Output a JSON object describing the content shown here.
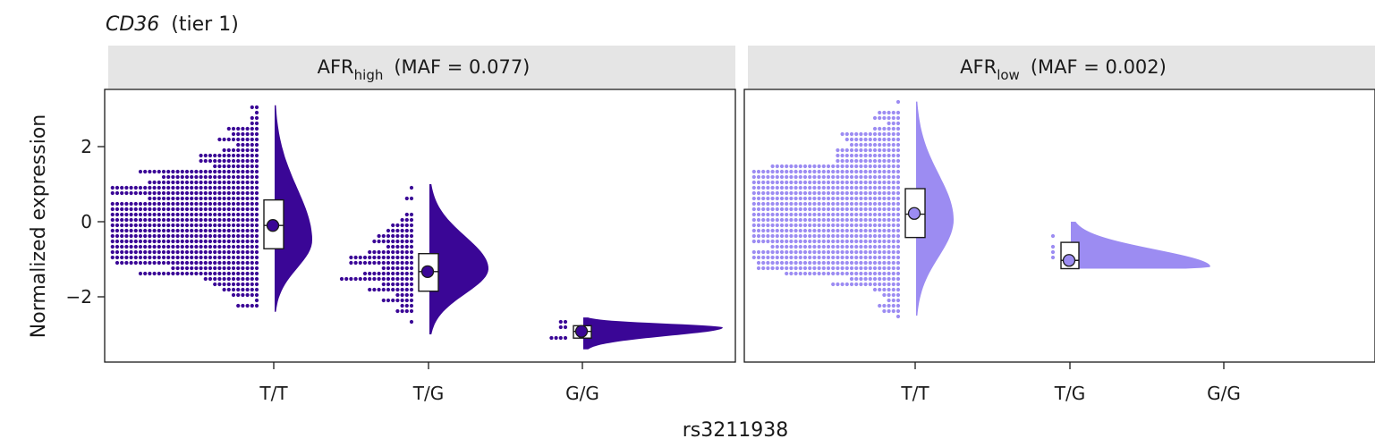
{
  "chart_data": {
    "type": "raincloud",
    "title": {
      "gene": "CD36",
      "suffix": "(tier 1)"
    },
    "xlabel": "rs3211938",
    "ylabel": "Normalized expression",
    "categories": [
      "T/T",
      "T/G",
      "G/G"
    ],
    "yticks": [
      "2",
      "0",
      "−2"
    ],
    "ytick_values": [
      2,
      0,
      -2
    ],
    "ylim": [
      -3.7,
      3.5
    ],
    "panels": [
      {
        "strip": {
          "main": "AFR",
          "sub": "high",
          "maf": "(MAF = 0.077)"
        },
        "color": "#3a0696",
        "groups": [
          {
            "genotype": "T/T",
            "median": -0.1,
            "q1": -0.72,
            "q3": 0.58,
            "min": -2.4,
            "max": 3.1,
            "mean": -0.1,
            "density_peak": -0.5,
            "n_approx": 780
          },
          {
            "genotype": "T/G",
            "median": -1.33,
            "q1": -1.85,
            "q3": -0.85,
            "min": -3.0,
            "max": 1.0,
            "mean": -1.33,
            "density_peak": -1.25,
            "n_approx": 150
          },
          {
            "genotype": "G/G",
            "median": -2.92,
            "q1": -3.1,
            "q3": -2.77,
            "min": -3.4,
            "max": -2.55,
            "mean": -2.92,
            "density_peak": -2.82,
            "n_approx": 8
          }
        ]
      },
      {
        "strip": {
          "main": "AFR",
          "sub": "low",
          "maf": "(MAF = 0.002)"
        },
        "color": "#9c8cf2",
        "groups": [
          {
            "genotype": "T/T",
            "median": 0.2,
            "q1": -0.42,
            "q3": 0.88,
            "min": -2.5,
            "max": 3.2,
            "mean": 0.22,
            "density_peak": 0.05,
            "n_approx": 1050
          },
          {
            "genotype": "T/G",
            "median": -1.03,
            "q1": -1.25,
            "q3": -0.55,
            "min": -1.25,
            "max": 0.0,
            "mean": -1.03,
            "density_peak": -1.2,
            "n_approx": 4
          }
        ]
      }
    ],
    "legend": "none",
    "grid": false
  }
}
